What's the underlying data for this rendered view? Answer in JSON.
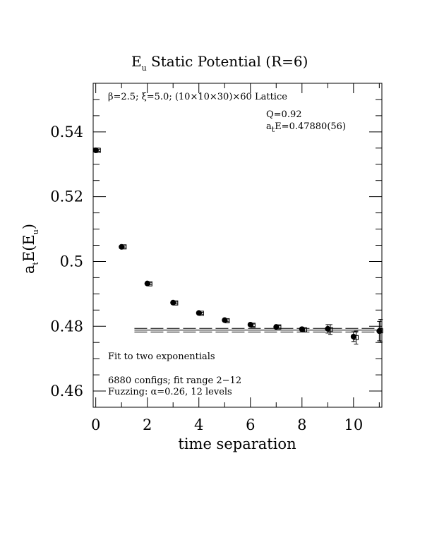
{
  "chart_data": {
    "type": "scatter",
    "title_main": "E",
    "title_sub": "u",
    "title_rest": " Static Potential (R=6)",
    "xlabel": "time separation",
    "ylabel_a": "a",
    "ylabel_t": "t",
    "ylabel_mid": "E(E",
    "ylabel_u": "u",
    "ylabel_end": ")",
    "xlim": [
      -0.1,
      11.1
    ],
    "ylim": [
      0.455,
      0.555
    ],
    "x_ticks": [
      "0",
      "2",
      "4",
      "6",
      "8",
      "10"
    ],
    "x_tick_values": [
      0,
      2,
      4,
      6,
      8,
      10
    ],
    "y_ticks": [
      "0.46",
      "0.48",
      "0.5",
      "0.52",
      "0.54"
    ],
    "y_tick_values": [
      0.46,
      0.48,
      0.5,
      0.52,
      0.54
    ],
    "annotations": {
      "lattice": "β=2.5; ξ=5.0; (10×10×30)×60 Lattice",
      "q": "Q=0.92",
      "energy_a": "a",
      "energy_t": "t",
      "energy_rest": "E=0.47880(56)",
      "fit": "Fit to two exponentials",
      "configs": "6880 configs; fit range 2−12",
      "fuzzing": "Fuzzing: α=0.26, 12 levels"
    },
    "fit": {
      "value": 0.4788,
      "error": 0.00056,
      "x_range": [
        1.5,
        11.1
      ]
    },
    "series": [
      {
        "marker": "filled-circle",
        "points": [
          {
            "x": 0,
            "y": 0.5343,
            "err": 0.0003
          },
          {
            "x": 1,
            "y": 0.5045,
            "err": 0.0003
          },
          {
            "x": 2,
            "y": 0.4932,
            "err": 0.0003
          },
          {
            "x": 3,
            "y": 0.4873,
            "err": 0.0003
          },
          {
            "x": 4,
            "y": 0.4841,
            "err": 0.0003
          },
          {
            "x": 5,
            "y": 0.4819,
            "err": 0.0003
          },
          {
            "x": 6,
            "y": 0.4805,
            "err": 0.0004
          },
          {
            "x": 7,
            "y": 0.4798,
            "err": 0.0004
          },
          {
            "x": 8,
            "y": 0.4791,
            "err": 0.0006
          },
          {
            "x": 9,
            "y": 0.4792,
            "err": 0.0013
          },
          {
            "x": 10,
            "y": 0.4768,
            "err": 0.0015
          },
          {
            "x": 11,
            "y": 0.4785,
            "err": 0.003
          }
        ]
      },
      {
        "marker": "open-square",
        "points": [
          {
            "x": 0.1,
            "y": 0.5343,
            "err": 0.0003
          },
          {
            "x": 1.1,
            "y": 0.5045,
            "err": 0.0003
          },
          {
            "x": 2.1,
            "y": 0.4931,
            "err": 0.0003
          },
          {
            "x": 3.1,
            "y": 0.4872,
            "err": 0.0003
          },
          {
            "x": 4.1,
            "y": 0.484,
            "err": 0.0003
          },
          {
            "x": 5.1,
            "y": 0.4817,
            "err": 0.0003
          },
          {
            "x": 6.1,
            "y": 0.4803,
            "err": 0.0004
          },
          {
            "x": 7.1,
            "y": 0.4798,
            "err": 0.0004
          },
          {
            "x": 8.1,
            "y": 0.4789,
            "err": 0.0006
          },
          {
            "x": 9.1,
            "y": 0.479,
            "err": 0.0015
          },
          {
            "x": 10.1,
            "y": 0.4765,
            "err": 0.002
          },
          {
            "x": 11.05,
            "y": 0.4786,
            "err": 0.0035
          }
        ]
      }
    ]
  }
}
